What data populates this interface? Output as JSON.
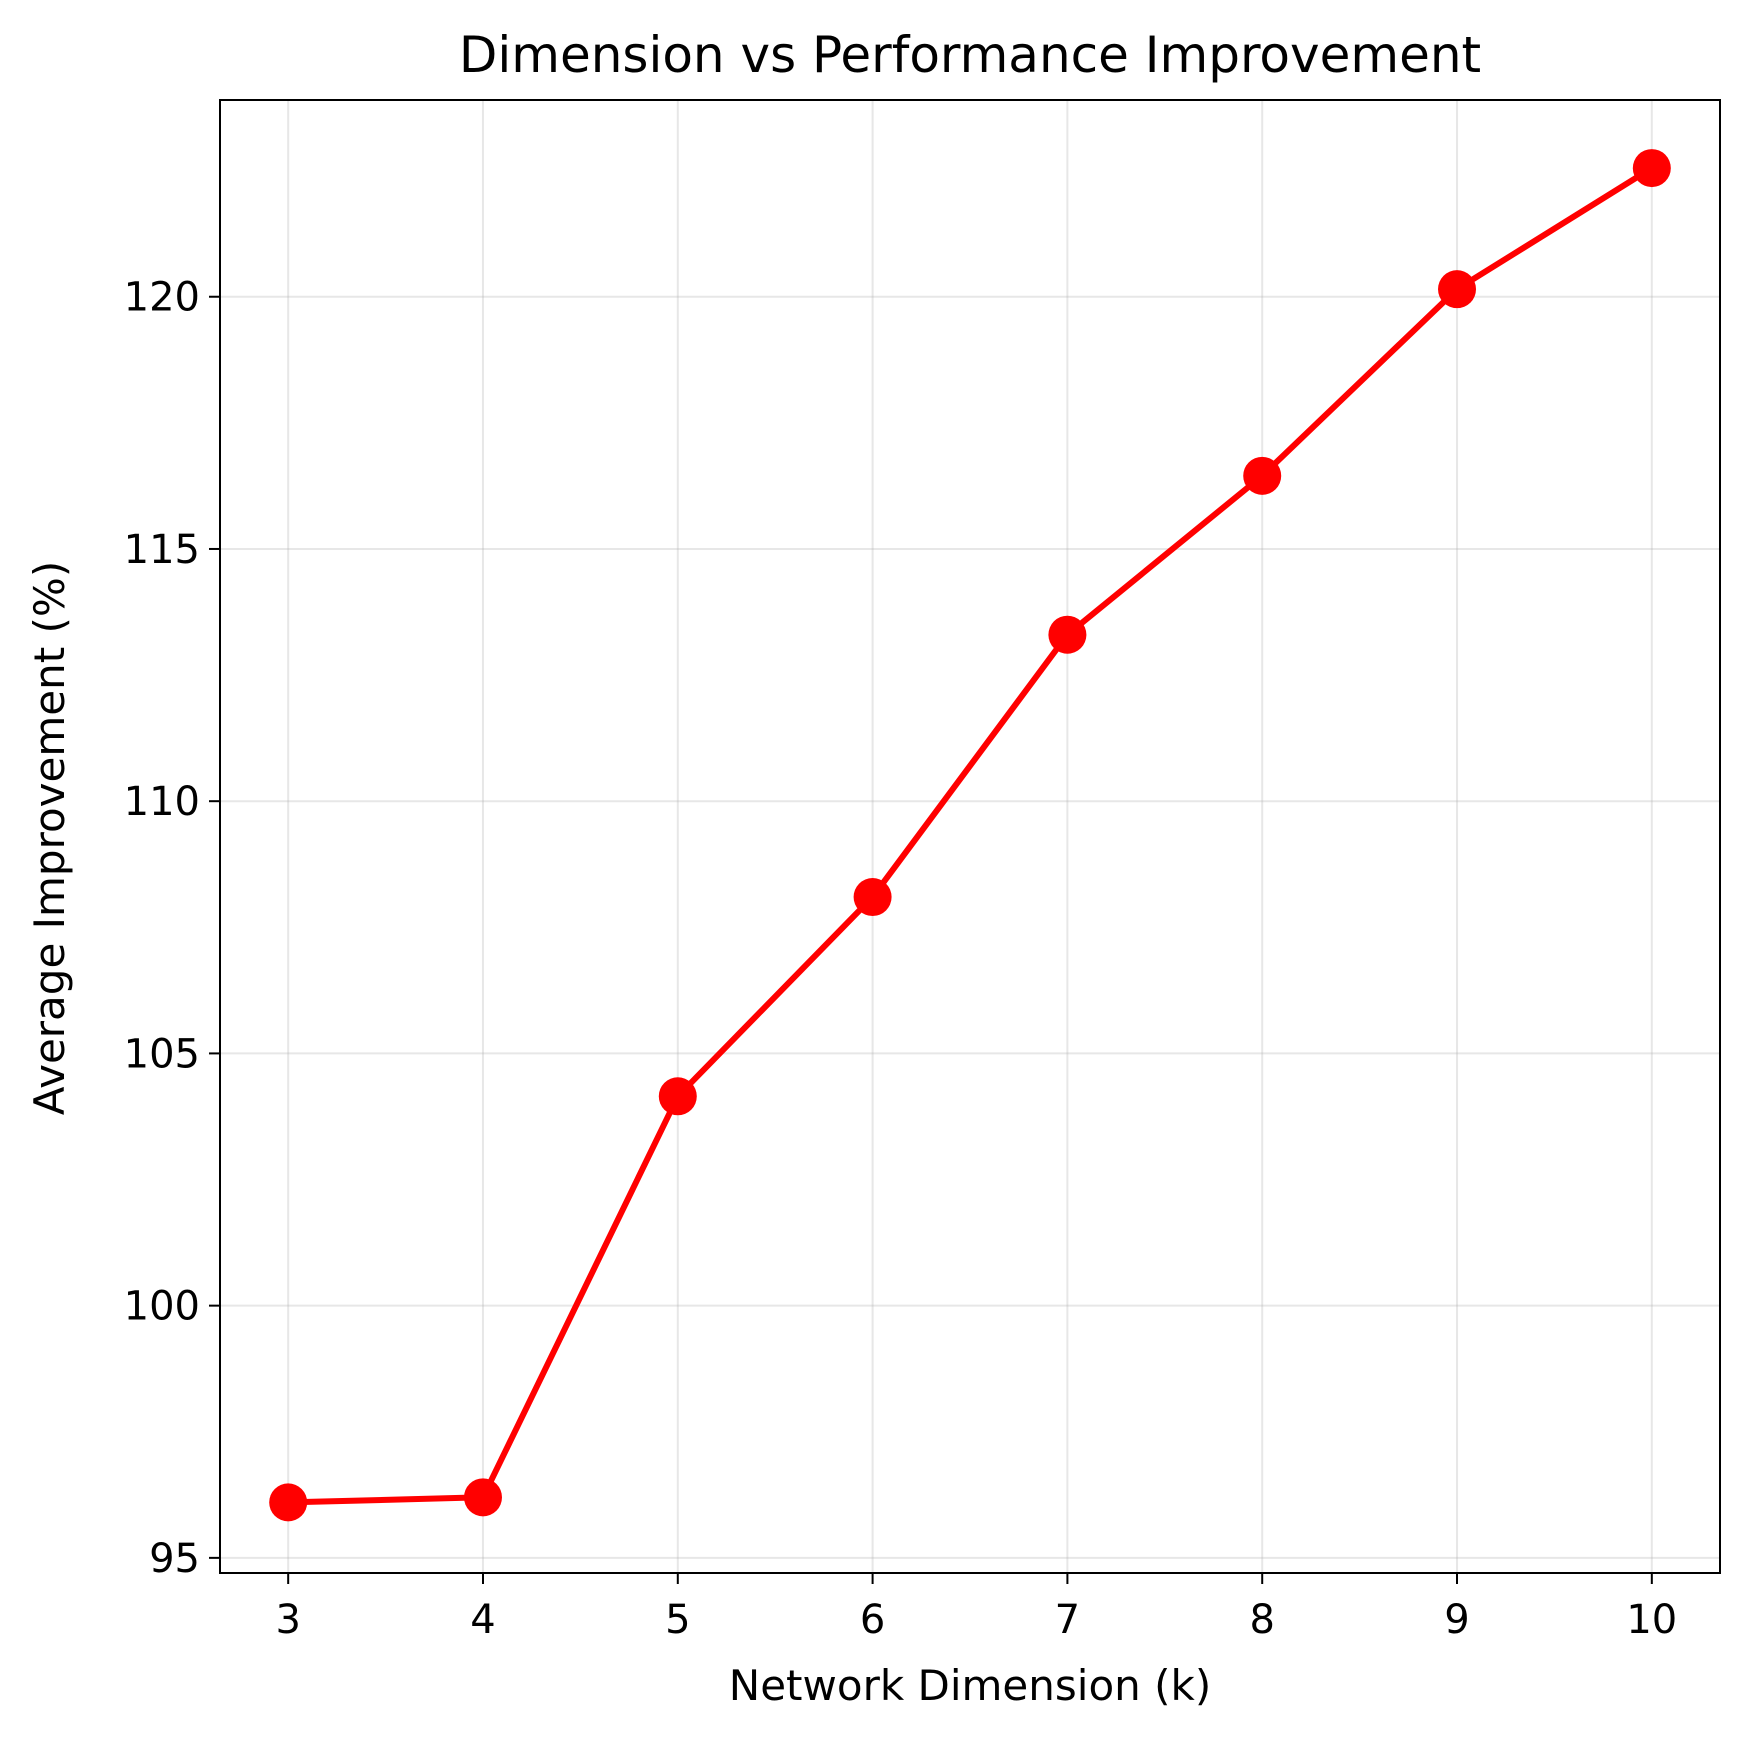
{
  "chart_data": {
    "type": "line",
    "title": "Dimension vs Performance Improvement",
    "xlabel": "Network Dimension (k)",
    "ylabel": "Average Improvement (%)",
    "x": [
      3,
      4,
      5,
      6,
      7,
      8,
      9,
      10
    ],
    "series": [
      {
        "values": [
          96.1,
          96.2,
          104.15,
          108.1,
          113.3,
          116.45,
          120.15,
          122.55
        ],
        "color": "#ff0000",
        "marker": "circle"
      }
    ],
    "x_ticks": [
      3,
      4,
      5,
      6,
      7,
      8,
      9,
      10
    ],
    "y_ticks": [
      95,
      100,
      105,
      110,
      115,
      120
    ],
    "xlim": [
      2.65,
      10.35
    ],
    "ylim": [
      94.7,
      123.9
    ],
    "grid": true
  }
}
